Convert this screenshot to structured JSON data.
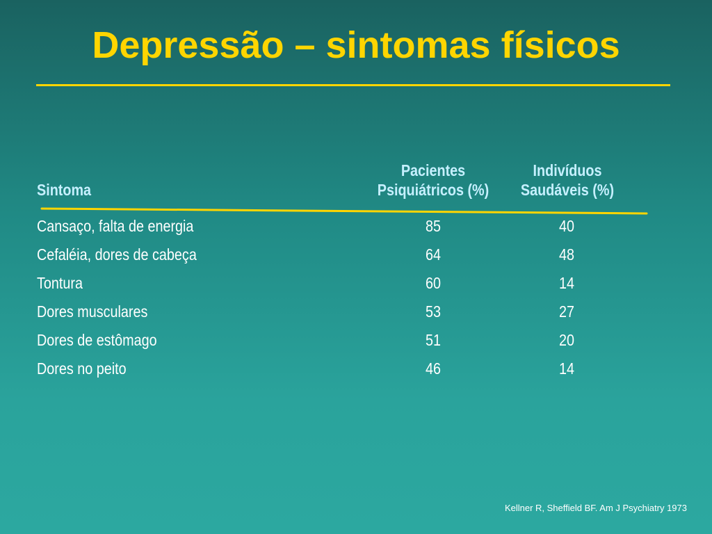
{
  "slide": {
    "title": "Depressão – sintomas físicos",
    "title_color": "#ffd500",
    "background_top": "#1a6260",
    "background_bottom": "#2ca8a0",
    "header_color": "#c6f0ff"
  },
  "table": {
    "headers": {
      "symptom": "Sintoma",
      "col1_line1": "Pacientes",
      "col1_line2": "Psiquiátricos (%)",
      "col2_line1": "Indivíduos",
      "col2_line2": "Saudáveis (%)"
    },
    "rows": [
      {
        "symptom": "Cansaço, falta de energia",
        "psychiatric": "85",
        "healthy": "40"
      },
      {
        "symptom": "Cefaléia, dores de cabeça",
        "psychiatric": "64",
        "healthy": "48"
      },
      {
        "symptom": "Tontura",
        "psychiatric": "60",
        "healthy": "14"
      },
      {
        "symptom": "Dores musculares",
        "psychiatric": "53",
        "healthy": "27"
      },
      {
        "symptom": "Dores de estômago",
        "psychiatric": "51",
        "healthy": "20"
      },
      {
        "symptom": "Dores no peito",
        "psychiatric": "46",
        "healthy": "14"
      }
    ]
  },
  "citation": "Kellner R, Sheffield BF. Am J Psychiatry 1973"
}
